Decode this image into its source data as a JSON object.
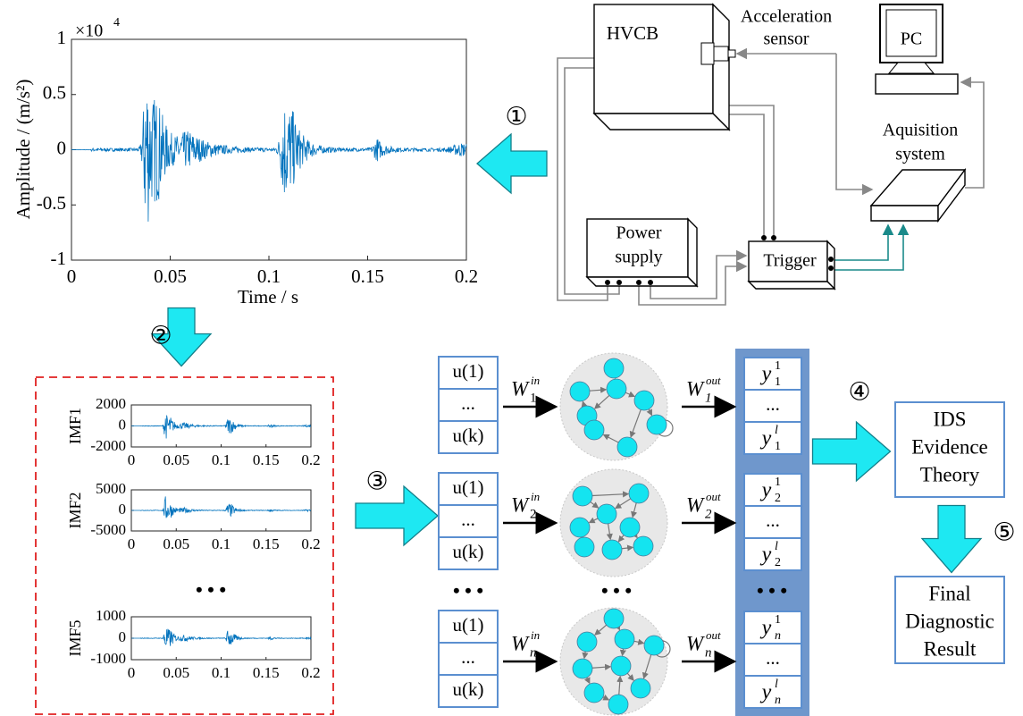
{
  "signal_plot": {
    "multiplier": {
      "base": "×10",
      "exponent": "4"
    },
    "y_label": "Amplitude / (m/s²)",
    "x_label": "Time / s",
    "yticks": [
      1,
      0.5,
      0,
      -0.5,
      -1
    ],
    "xticks": [
      0,
      0.05,
      0.1,
      0.15,
      0.2
    ]
  },
  "steps": [
    "①",
    "②",
    "③",
    "④",
    "⑤"
  ],
  "hardware": {
    "hvcb": "HVCB",
    "sensor": [
      "Acceleration",
      "sensor"
    ],
    "pc": "PC",
    "acquisition": [
      "Aquisition",
      "system"
    ],
    "power_supply": [
      "Power",
      "supply"
    ],
    "trigger": "Trigger"
  },
  "imf_plots": [
    {
      "label": "IMF1",
      "yticks": [
        2000,
        0,
        -2000
      ],
      "xticks": [
        0,
        0.05,
        0.1,
        0.15,
        0.2
      ]
    },
    {
      "label": "IMF2",
      "yticks": [
        5000,
        0,
        -5000
      ],
      "xticks": [
        0,
        0.05,
        0.1,
        0.15,
        0.2
      ]
    },
    {
      "label": "IMF5",
      "yticks": [
        1000,
        0,
        -1000
      ],
      "xticks": [
        0,
        0.05,
        0.1,
        0.15,
        0.2
      ]
    }
  ],
  "imf_ellipsis": "• • •",
  "reservoirs": [
    {
      "inputs": [
        "u(1)",
        "...",
        "u(k)"
      ],
      "w_in": {
        "base": "W",
        "sub": "1",
        "sup": "in"
      },
      "w_out": {
        "base": "W",
        "sub": "1",
        "sup": "out"
      },
      "outputs": [
        {
          "base": "y",
          "sub": "1",
          "sup": "1"
        },
        "...",
        {
          "base": "y",
          "sub": "1",
          "sup": "l"
        }
      ]
    },
    {
      "inputs": [
        "u(1)",
        "...",
        "u(k)"
      ],
      "w_in": {
        "base": "W",
        "sub": "2",
        "sup": "in"
      },
      "w_out": {
        "base": "W",
        "sub": "2",
        "sup": "out"
      },
      "outputs": [
        {
          "base": "y",
          "sub": "2",
          "sup": "1"
        },
        "...",
        {
          "base": "y",
          "sub": "2",
          "sup": "l"
        }
      ]
    },
    {
      "inputs": [
        "u(1)",
        "...",
        "u(k)"
      ],
      "w_in": {
        "base": "W",
        "sub": "n",
        "sup": "in"
      },
      "w_out": {
        "base": "W",
        "sub": "n",
        "sup": "out"
      },
      "outputs": [
        {
          "base": "y",
          "sub": "n",
          "sup": "1"
        },
        "...",
        {
          "base": "y",
          "sub": "n",
          "sup": "l"
        }
      ]
    }
  ],
  "column_ellipses": [
    "• • •",
    "• • •",
    "• • •"
  ],
  "ids_box": [
    "IDS",
    "Evidence",
    "Theory"
  ],
  "result_box": [
    "Final",
    "Diagnostic",
    "Result"
  ]
}
